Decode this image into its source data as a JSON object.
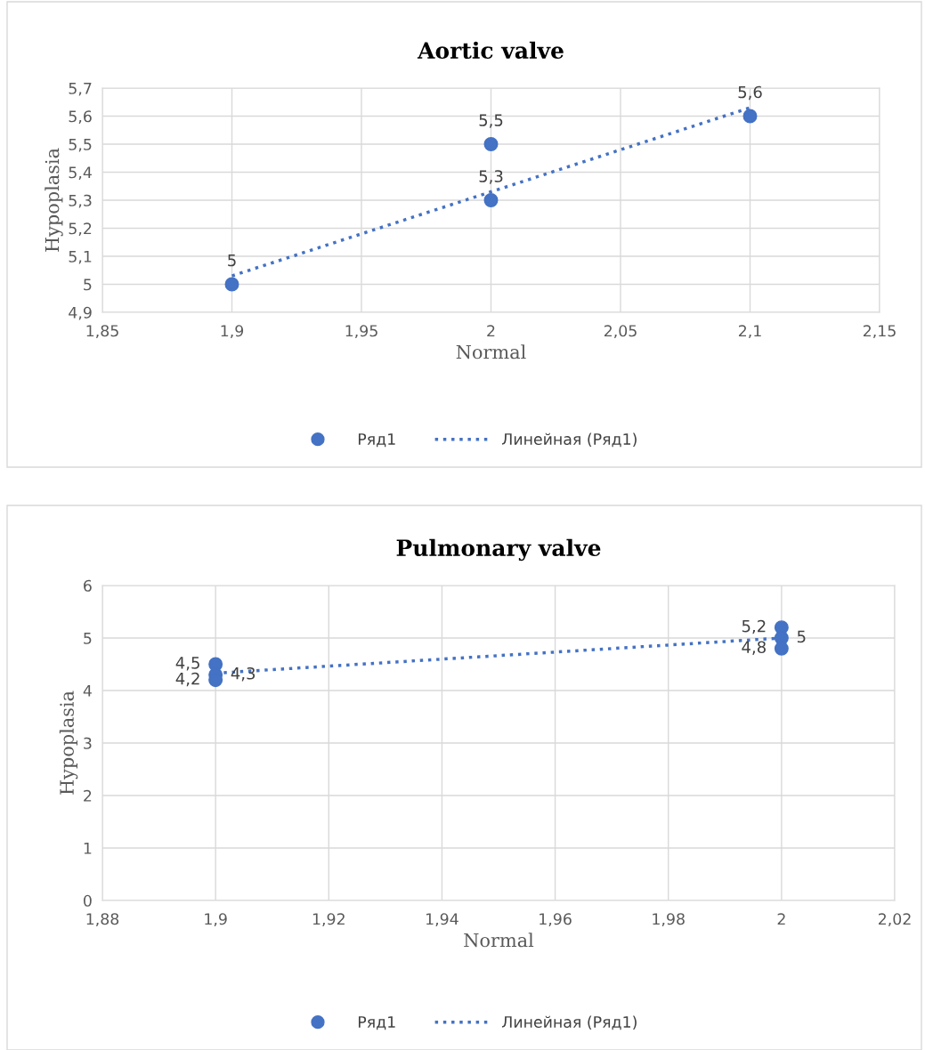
{
  "chart_data": [
    {
      "type": "scatter",
      "title": "Aortic valve",
      "xlabel": "Normal",
      "ylabel": "Hypoplasia",
      "xlim": [
        1.85,
        2.15
      ],
      "xticks": [
        {
          "value": 1.85,
          "label": "1,85"
        },
        {
          "value": 1.9,
          "label": "1,9"
        },
        {
          "value": 1.95,
          "label": "1,95"
        },
        2,
        {
          "value": 2.05,
          "label": "2,05"
        },
        {
          "value": 2.1,
          "label": "2,1"
        },
        {
          "value": 2.15,
          "label": "2,15"
        }
      ],
      "ylim": [
        4.9,
        5.7
      ],
      "yticks": [
        {
          "value": 4.9,
          "label": "4,9"
        },
        5,
        {
          "value": 5.1,
          "label": "5,1"
        },
        {
          "value": 5.2,
          "label": "5,2"
        },
        {
          "value": 5.3,
          "label": "5,3"
        },
        {
          "value": 5.4,
          "label": "5,4"
        },
        {
          "value": 5.5,
          "label": "5,5"
        },
        {
          "value": 5.6,
          "label": "5,6"
        },
        {
          "value": 5.7,
          "label": "5,7"
        }
      ],
      "grid": true,
      "legend": "bottom",
      "series": [
        {
          "name": "Ряд1",
          "color": "#4472c4",
          "marker": "circle",
          "x": [
            1.9,
            2,
            2,
            2.1
          ],
          "values": [
            5,
            5.5,
            5.3,
            5.6
          ],
          "value_labels": [
            "5",
            "5,5",
            "5,3",
            "5,6"
          ]
        },
        {
          "name": "Линейная (Ряд1)",
          "type": "line",
          "color": "#4472c4",
          "marker": "none",
          "line_style": "dotted",
          "x": [
            1.9,
            2.1
          ],
          "values": [
            5.03,
            5.63
          ]
        }
      ]
    },
    {
      "type": "scatter",
      "title": "Pulmonary valve",
      "xlabel": "Normal",
      "ylabel": "Hypoplasia",
      "xlim": [
        1.88,
        2.02
      ],
      "xticks": [
        {
          "value": 1.88,
          "label": "1,88"
        },
        {
          "value": 1.9,
          "label": "1,9"
        },
        {
          "value": 1.92,
          "label": "1,92"
        },
        {
          "value": 1.94,
          "label": "1,94"
        },
        {
          "value": 1.96,
          "label": "1,96"
        },
        {
          "value": 1.98,
          "label": "1,98"
        },
        2,
        {
          "value": 2.02,
          "label": "2,02"
        }
      ],
      "ylim": [
        0,
        6
      ],
      "yticks": [
        0,
        1,
        2,
        3,
        4,
        5,
        6
      ],
      "grid": true,
      "legend": "bottom",
      "series": [
        {
          "name": "Ряд1",
          "color": "#4472c4",
          "marker": "circle",
          "x": [
            1.9,
            1.9,
            1.9,
            2,
            2,
            2
          ],
          "values": [
            4.5,
            4.3,
            4.2,
            5.2,
            5,
            4.8
          ],
          "value_labels": [
            "4,5",
            "4,3",
            "4,2",
            "5,2",
            "5",
            "4,8"
          ]
        },
        {
          "name": "Линейная (Ряд1)",
          "type": "line",
          "color": "#4472c4",
          "marker": "none",
          "line_style": "dotted",
          "x": [
            1.9,
            2
          ],
          "values": [
            4.33,
            5.0
          ]
        }
      ]
    }
  ]
}
